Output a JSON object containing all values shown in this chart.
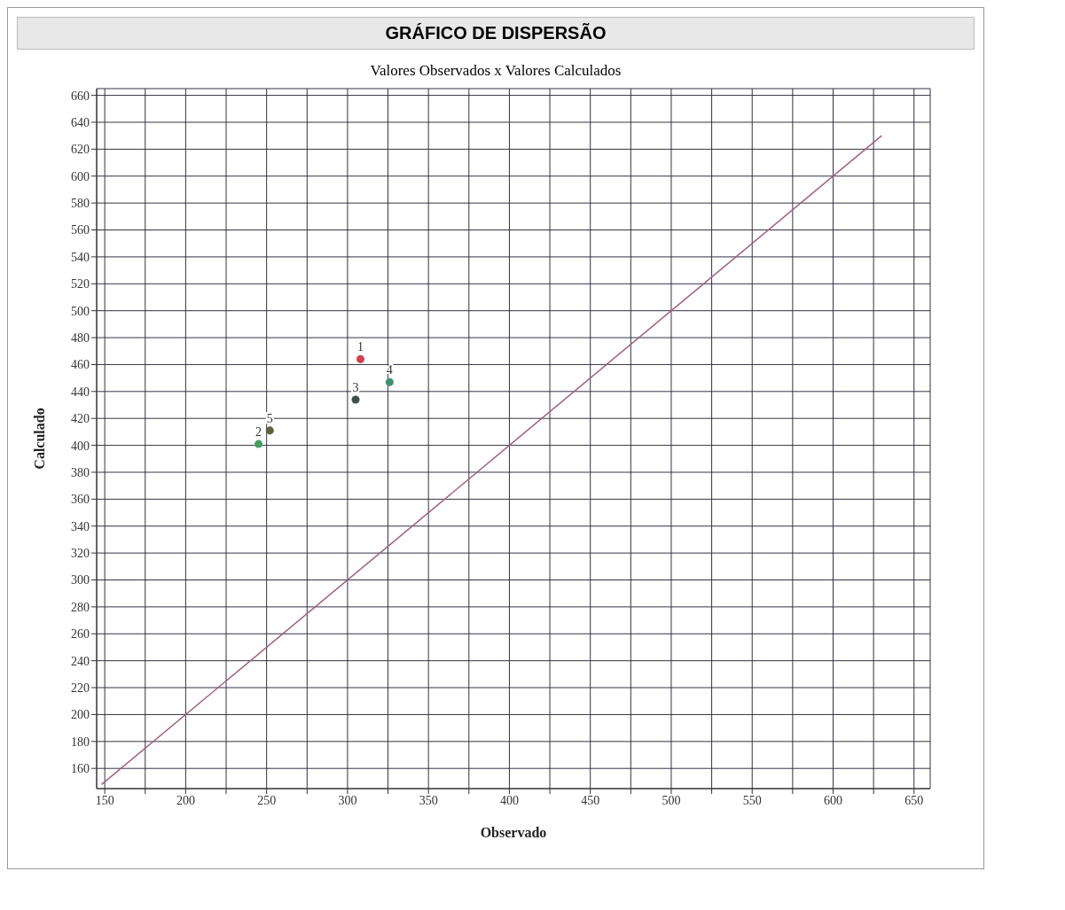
{
  "chart_data": {
    "type": "scatter",
    "title": "GRÁFICO DE DISPERSÃO",
    "subtitle": "Valores Observados x Valores Calculados",
    "xlabel": "Observado",
    "ylabel": "Calculado",
    "xlim": [
      145,
      660
    ],
    "ylim": [
      145,
      665
    ],
    "xticks": [
      150,
      {
        "value": 175,
        "label": null
      },
      200,
      {
        "value": 225,
        "label": null
      },
      250,
      {
        "value": 275,
        "label": null
      },
      300,
      {
        "value": 325,
        "label": null
      },
      350,
      {
        "value": 375,
        "label": null
      },
      400,
      {
        "value": 425,
        "label": null
      },
      450,
      {
        "value": 475,
        "label": null
      },
      500,
      {
        "value": 525,
        "label": null
      },
      550,
      {
        "value": 575,
        "label": null
      },
      600,
      {
        "value": 625,
        "label": null
      },
      650
    ],
    "yticks": [
      160,
      180,
      200,
      220,
      240,
      260,
      280,
      300,
      320,
      340,
      360,
      380,
      400,
      420,
      440,
      460,
      480,
      500,
      520,
      540,
      560,
      580,
      600,
      620,
      640,
      660
    ],
    "grid": true,
    "legend": false,
    "marker": "circle",
    "annotations": [
      {
        "text": "1",
        "x": 308,
        "y": 464
      },
      {
        "text": "2",
        "x": 245,
        "y": 401
      },
      {
        "text": "3",
        "x": 305,
        "y": 434
      },
      {
        "text": "4",
        "x": 326,
        "y": 447
      },
      {
        "text": "5",
        "x": 252,
        "y": 411
      }
    ],
    "series": [
      {
        "type": "scatter",
        "x": [
          308,
          245,
          305,
          326,
          252
        ],
        "values": [
          464,
          401,
          434,
          447,
          411
        ],
        "colors": [
          "#d04050",
          "#40a060",
          "#405050",
          "#409070",
          "#606040"
        ]
      },
      {
        "type": "line",
        "x": [
          148,
          630
        ],
        "values": [
          148,
          630
        ],
        "color": "#a06080",
        "line_style": "solid",
        "marker": "none"
      }
    ]
  }
}
